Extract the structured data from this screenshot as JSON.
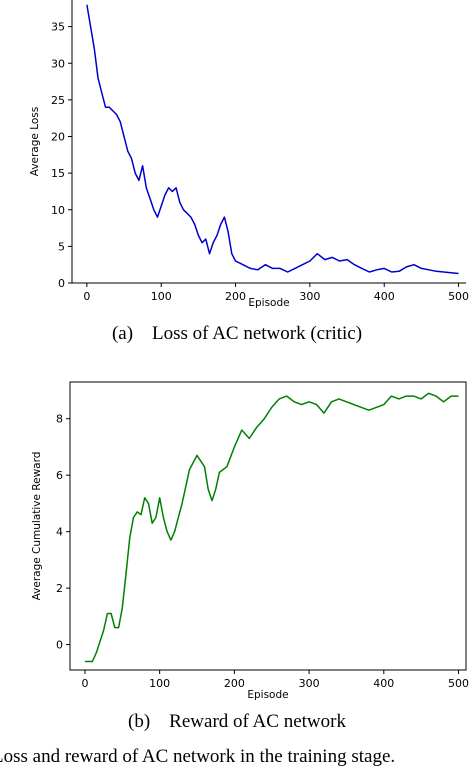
{
  "figure_caption": "Loss and reward of AC network in the training stage.",
  "chart_data": [
    {
      "type": "line",
      "caption": "(a)    Loss of AC network (critic)",
      "title": "",
      "xlabel": "Episode",
      "ylabel": "Average Loss",
      "xlim": [
        -20,
        510
      ],
      "ylim": [
        0,
        40
      ],
      "xticks": [
        0,
        100,
        200,
        300,
        400,
        500
      ],
      "yticks": [
        0,
        5,
        10,
        15,
        20,
        25,
        30,
        35
      ],
      "grid": false,
      "color": "#0000cc",
      "series": [
        {
          "x": [
            0,
            5,
            10,
            15,
            20,
            25,
            30,
            35,
            40,
            45,
            50,
            55,
            60,
            65,
            70,
            75,
            80,
            85,
            90,
            95,
            100,
            105,
            110,
            115,
            120,
            125,
            130,
            135,
            140,
            145,
            150,
            155,
            160,
            165,
            170,
            175,
            180,
            185,
            190,
            195,
            200,
            210,
            220,
            230,
            240,
            250,
            260,
            270,
            280,
            290,
            300,
            310,
            320,
            330,
            340,
            350,
            360,
            370,
            380,
            390,
            400,
            410,
            420,
            430,
            440,
            450,
            460,
            470,
            480,
            490,
            500
          ],
          "values": [
            38,
            35,
            32,
            28,
            26,
            24,
            24,
            23.5,
            23,
            22,
            20,
            18,
            17,
            15,
            14,
            16,
            13,
            11.5,
            10,
            9,
            10.5,
            12,
            13,
            12.5,
            13,
            11,
            10,
            9.5,
            9,
            8,
            6.5,
            5.5,
            6,
            4,
            5.5,
            6.5,
            8,
            9,
            7,
            4,
            3,
            2.5,
            2,
            1.8,
            2.5,
            2,
            2,
            1.5,
            2,
            2.5,
            3,
            4,
            3.2,
            3.5,
            3,
            3.2,
            2.5,
            2,
            1.5,
            1.8,
            2,
            1.5,
            1.6,
            2.2,
            2.5,
            2,
            1.8,
            1.6,
            1.5,
            1.4,
            1.3
          ]
        }
      ]
    },
    {
      "type": "line",
      "caption": "(b)    Reward of AC network",
      "title": "",
      "xlabel": "Episode",
      "ylabel": "Average Cumulative Reward",
      "xlim": [
        -20,
        510
      ],
      "ylim": [
        -0.9,
        9.3
      ],
      "xticks": [
        0,
        100,
        200,
        300,
        400,
        500
      ],
      "yticks": [
        0,
        2,
        4,
        6,
        8
      ],
      "grid": false,
      "color": "#008000",
      "series": [
        {
          "x": [
            0,
            5,
            10,
            15,
            20,
            25,
            30,
            35,
            40,
            45,
            50,
            55,
            60,
            65,
            70,
            75,
            80,
            85,
            90,
            95,
            100,
            105,
            110,
            115,
            120,
            130,
            140,
            150,
            160,
            165,
            170,
            175,
            180,
            190,
            200,
            210,
            220,
            230,
            240,
            250,
            260,
            270,
            275,
            280,
            290,
            300,
            310,
            320,
            330,
            340,
            350,
            360,
            370,
            380,
            390,
            400,
            410,
            420,
            430,
            440,
            450,
            460,
            470,
            480,
            490,
            500
          ],
          "values": [
            -0.6,
            -0.6,
            -0.6,
            -0.3,
            0.1,
            0.5,
            1.1,
            1.1,
            0.6,
            0.6,
            1.3,
            2.5,
            3.8,
            4.5,
            4.7,
            4.6,
            5.2,
            5.0,
            4.3,
            4.5,
            5.2,
            4.5,
            4.0,
            3.7,
            4.0,
            5.0,
            6.2,
            6.7,
            6.3,
            5.5,
            5.1,
            5.5,
            6.1,
            6.3,
            7.0,
            7.6,
            7.3,
            7.7,
            8.0,
            8.4,
            8.7,
            8.8,
            8.7,
            8.6,
            8.5,
            8.6,
            8.5,
            8.2,
            8.6,
            8.7,
            8.6,
            8.5,
            8.4,
            8.3,
            8.4,
            8.5,
            8.8,
            8.7,
            8.8,
            8.8,
            8.7,
            8.9,
            8.8,
            8.6,
            8.8,
            8.8
          ]
        }
      ]
    }
  ]
}
